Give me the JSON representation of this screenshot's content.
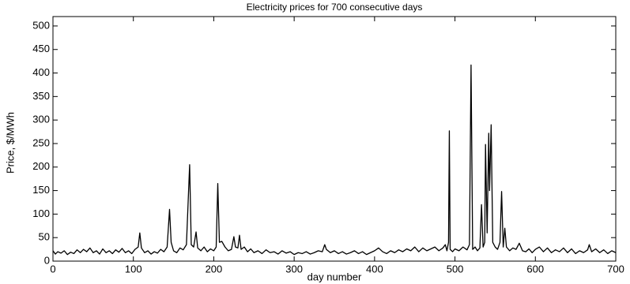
{
  "chart_data": {
    "type": "line",
    "title": "Electricity prices for 700 consecutive days",
    "x_label": "day number",
    "y_label": "Price, $/MWh",
    "color": "#000000",
    "xlim": [
      0,
      700
    ],
    "xticks": [
      0,
      100,
      200,
      300,
      400,
      500,
      600,
      700
    ],
    "ylim": [
      0,
      520
    ],
    "yticks": [
      0,
      50,
      100,
      150,
      200,
      250,
      300,
      350,
      400,
      450,
      500
    ],
    "grid": false,
    "x": [
      0,
      3,
      6,
      10,
      14,
      18,
      22,
      26,
      30,
      34,
      38,
      42,
      46,
      50,
      54,
      58,
      62,
      66,
      70,
      74,
      78,
      82,
      86,
      90,
      94,
      98,
      102,
      106,
      108,
      110,
      114,
      118,
      122,
      126,
      130,
      134,
      138,
      142,
      145,
      147,
      150,
      154,
      158,
      162,
      166,
      170,
      172,
      175,
      178,
      180,
      184,
      188,
      192,
      196,
      200,
      203,
      205,
      207,
      210,
      214,
      218,
      222,
      225,
      227,
      230,
      232,
      234,
      238,
      242,
      246,
      250,
      255,
      260,
      265,
      270,
      275,
      280,
      285,
      290,
      295,
      300,
      305,
      310,
      315,
      320,
      325,
      330,
      335,
      338,
      340,
      345,
      350,
      355,
      360,
      365,
      370,
      375,
      380,
      385,
      390,
      395,
      400,
      405,
      410,
      415,
      420,
      425,
      430,
      435,
      440,
      445,
      450,
      455,
      460,
      465,
      470,
      475,
      480,
      485,
      488,
      490,
      492,
      493,
      494,
      497,
      500,
      505,
      510,
      515,
      518,
      520,
      522,
      525,
      528,
      531,
      533,
      535,
      537,
      538,
      540,
      542,
      543,
      545,
      547,
      550,
      553,
      556,
      558,
      560,
      562,
      564,
      568,
      572,
      576,
      580,
      584,
      588,
      592,
      596,
      600,
      605,
      610,
      615,
      620,
      625,
      630,
      635,
      640,
      645,
      650,
      655,
      660,
      665,
      667,
      670,
      675,
      680,
      685,
      690,
      695,
      700
    ],
    "values": [
      22,
      15,
      20,
      17,
      22,
      14,
      19,
      16,
      24,
      18,
      25,
      20,
      28,
      18,
      22,
      15,
      26,
      18,
      22,
      16,
      24,
      19,
      27,
      18,
      22,
      16,
      25,
      30,
      60,
      28,
      18,
      22,
      15,
      20,
      17,
      25,
      20,
      30,
      110,
      40,
      22,
      18,
      28,
      24,
      35,
      205,
      35,
      30,
      62,
      28,
      22,
      30,
      20,
      26,
      22,
      30,
      165,
      40,
      42,
      30,
      22,
      25,
      52,
      30,
      28,
      55,
      25,
      30,
      20,
      26,
      18,
      22,
      16,
      24,
      18,
      20,
      15,
      22,
      17,
      20,
      14,
      18,
      16,
      20,
      15,
      18,
      22,
      20,
      35,
      25,
      18,
      22,
      16,
      20,
      15,
      18,
      22,
      16,
      20,
      14,
      18,
      22,
      28,
      20,
      16,
      22,
      18,
      24,
      20,
      26,
      22,
      30,
      20,
      28,
      22,
      26,
      30,
      22,
      28,
      35,
      22,
      40,
      277,
      25,
      20,
      26,
      22,
      30,
      24,
      35,
      417,
      25,
      30,
      22,
      28,
      120,
      30,
      40,
      248,
      60,
      272,
      150,
      290,
      40,
      30,
      25,
      40,
      148,
      30,
      70,
      30,
      22,
      28,
      25,
      38,
      22,
      20,
      26,
      18,
      25,
      30,
      20,
      28,
      18,
      24,
      20,
      28,
      18,
      26,
      16,
      22,
      18,
      24,
      35,
      20,
      26,
      18,
      24,
      16,
      22,
      18
    ]
  }
}
